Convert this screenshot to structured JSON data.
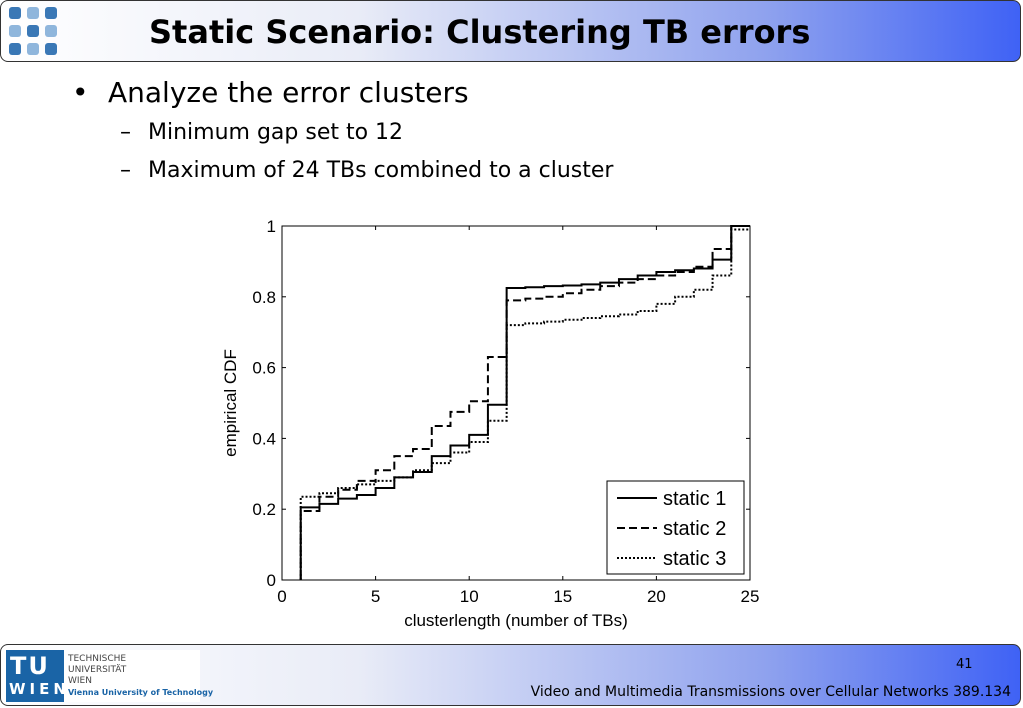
{
  "header": {
    "title": "Static Scenario: Clustering TB errors"
  },
  "bullets": {
    "main": "Analyze the error clusters",
    "subs": [
      "Minimum gap set to 12",
      "Maximum of 24 TBs combined to a cluster"
    ]
  },
  "chart_data": {
    "type": "line",
    "xlabel": "clusterlength (number of TBs)",
    "ylabel": "empirical CDF",
    "xlim": [
      0,
      25
    ],
    "ylim": [
      0,
      1
    ],
    "xticks": [
      0,
      5,
      10,
      15,
      20,
      25
    ],
    "yticks": [
      0,
      0.2,
      0.4,
      0.6,
      0.8,
      1
    ],
    "ytick_labels": [
      "0",
      "0.2",
      "0.4",
      "0.6",
      "0.8",
      "1"
    ],
    "grid": false,
    "legend_position": "bottom-right",
    "step": true,
    "series": [
      {
        "name": "static 1",
        "style": "solid",
        "x": [
          1,
          2,
          3,
          4,
          5,
          6,
          7,
          8,
          9,
          10,
          11,
          12,
          13,
          14,
          15,
          16,
          17,
          18,
          19,
          20,
          21,
          22,
          23,
          24
        ],
        "y": [
          0.205,
          0.215,
          0.23,
          0.24,
          0.26,
          0.29,
          0.305,
          0.35,
          0.38,
          0.41,
          0.495,
          0.825,
          0.827,
          0.83,
          0.832,
          0.835,
          0.84,
          0.85,
          0.86,
          0.87,
          0.875,
          0.88,
          0.905,
          1.0
        ]
      },
      {
        "name": "static 2",
        "style": "dashed",
        "x": [
          1,
          2,
          3,
          4,
          5,
          6,
          7,
          8,
          9,
          10,
          11,
          12,
          13,
          14,
          15,
          16,
          17,
          18,
          19,
          20,
          21,
          22,
          23,
          24
        ],
        "y": [
          0.195,
          0.235,
          0.255,
          0.28,
          0.31,
          0.35,
          0.37,
          0.435,
          0.475,
          0.505,
          0.63,
          0.79,
          0.795,
          0.8,
          0.81,
          0.82,
          0.83,
          0.84,
          0.85,
          0.86,
          0.87,
          0.885,
          0.935,
          1.0
        ]
      },
      {
        "name": "static 3",
        "style": "dotted",
        "x": [
          1,
          2,
          3,
          4,
          5,
          6,
          7,
          8,
          9,
          10,
          11,
          12,
          13,
          14,
          15,
          16,
          17,
          18,
          19,
          20,
          21,
          22,
          23,
          24
        ],
        "y": [
          0.235,
          0.245,
          0.26,
          0.27,
          0.28,
          0.29,
          0.31,
          0.33,
          0.36,
          0.39,
          0.45,
          0.72,
          0.725,
          0.73,
          0.735,
          0.74,
          0.745,
          0.75,
          0.76,
          0.78,
          0.8,
          0.82,
          0.86,
          0.99
        ]
      }
    ]
  },
  "footer": {
    "logo": {
      "tu": "TU",
      "wien": "WIEN",
      "line1": "TECHNISCHE",
      "line2": "UNIVERSITÄT",
      "line3": "WIEN",
      "line4": "Vienna University of Technology"
    },
    "slide_number": "41",
    "course": "Video and Multimedia Transmissions over Cellular Networks 389.134"
  },
  "colors": {
    "header_gradient_end": "#3f62f5",
    "logo_blue": "#1a64a6"
  }
}
